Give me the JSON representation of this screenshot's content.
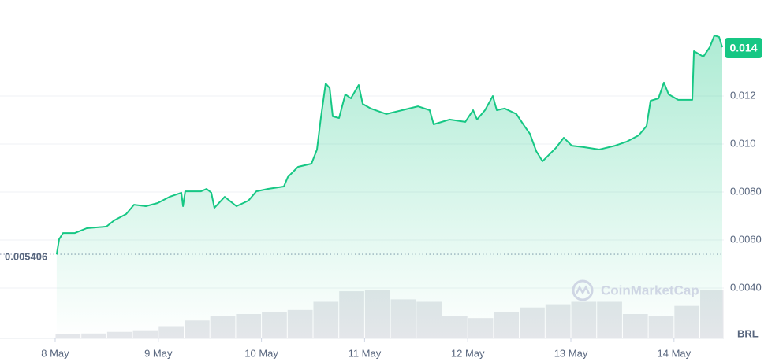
{
  "chart_data": {
    "type": "line",
    "x": [
      0.015,
      0.038,
      0.076,
      0.191,
      0.306,
      0.497,
      0.573,
      0.688,
      0.765,
      0.879,
      0.994,
      1.109,
      1.223,
      1.239,
      1.261,
      1.414,
      1.468,
      1.514,
      1.544,
      1.644,
      1.758,
      1.873,
      1.95,
      2.064,
      2.217,
      2.255,
      2.355,
      2.485,
      2.538,
      2.576,
      2.622,
      2.661,
      2.691,
      2.752,
      2.813,
      2.867,
      2.943,
      2.982,
      3.058,
      3.211,
      3.364,
      3.517,
      3.631,
      3.67,
      3.823,
      3.976,
      4.052,
      4.09,
      4.167,
      4.243,
      4.281,
      4.358,
      4.472,
      4.549,
      4.602,
      4.664,
      4.725,
      4.778,
      4.855,
      4.931,
      5.008,
      5.122,
      5.275,
      5.428,
      5.543,
      5.657,
      5.734,
      5.772,
      5.849,
      5.902,
      5.948,
      6.04,
      6.177,
      6.193,
      6.284,
      6.346,
      6.391,
      6.437,
      6.468
    ],
    "values": [
      0.0054,
      0.00603,
      0.00629,
      0.00629,
      0.00649,
      0.00656,
      0.00682,
      0.00708,
      0.00747,
      0.00741,
      0.00754,
      0.0078,
      0.00797,
      0.00741,
      0.00803,
      0.00803,
      0.00813,
      0.00797,
      0.00734,
      0.0078,
      0.00741,
      0.00764,
      0.00803,
      0.00813,
      0.00823,
      0.00862,
      0.00905,
      0.00918,
      0.00977,
      0.01108,
      0.01252,
      0.01233,
      0.01115,
      0.01108,
      0.01207,
      0.0119,
      0.01246,
      0.01167,
      0.01148,
      0.01125,
      0.01141,
      0.01157,
      0.01141,
      0.01082,
      0.01102,
      0.01092,
      0.01141,
      0.01102,
      0.01141,
      0.012,
      0.01141,
      0.01148,
      0.01125,
      0.01075,
      0.01043,
      0.0097,
      0.00928,
      0.00951,
      0.00984,
      0.01026,
      0.00993,
      0.00987,
      0.00977,
      0.00993,
      0.0101,
      0.01036,
      0.01075,
      0.0118,
      0.0119,
      0.01256,
      0.01207,
      0.01184,
      0.01184,
      0.01387,
      0.01364,
      0.01403,
      0.01452,
      0.01446,
      0.01403
    ],
    "color": "#16c784",
    "xlim": [
      -0.535,
      6.483
    ],
    "xticks": [
      {
        "value": 0,
        "label": "8 May"
      },
      {
        "value": 1,
        "label": "9 May"
      },
      {
        "value": 2,
        "label": "10 May"
      },
      {
        "value": 3,
        "label": "11 May"
      },
      {
        "value": 4,
        "label": "12 May"
      },
      {
        "value": 5,
        "label": "13 May"
      },
      {
        "value": 6,
        "label": "14 May"
      }
    ],
    "ylim": [
      0.0019,
      0.016
    ],
    "yticks": [
      {
        "value": 0.004,
        "label": "0.0040"
      },
      {
        "value": 0.006,
        "label": "0.0060"
      },
      {
        "value": 0.008,
        "label": "0.0080"
      },
      {
        "value": 0.01,
        "label": "0.010"
      },
      0.012
    ],
    "grid": true,
    "reference_value": 0.005406,
    "current_value": 0.014,
    "currency": "BRL",
    "watermark": "CoinMarketCap",
    "volume": {
      "x": [
        0,
        0.25,
        0.5,
        0.75,
        1,
        1.25,
        1.5,
        1.75,
        2,
        2.25,
        2.5,
        2.75,
        3,
        3.25,
        3.5,
        3.75,
        4,
        4.25,
        4.5,
        4.75,
        5,
        5.25,
        5.5,
        5.75,
        6,
        6.25
      ],
      "values": [
        5,
        6,
        8,
        10,
        15,
        22,
        28,
        30,
        32,
        35,
        45,
        58,
        60,
        48,
        45,
        28,
        25,
        32,
        38,
        42,
        45,
        45,
        30,
        28,
        40,
        60
      ],
      "color": "#e4e6ea"
    }
  }
}
